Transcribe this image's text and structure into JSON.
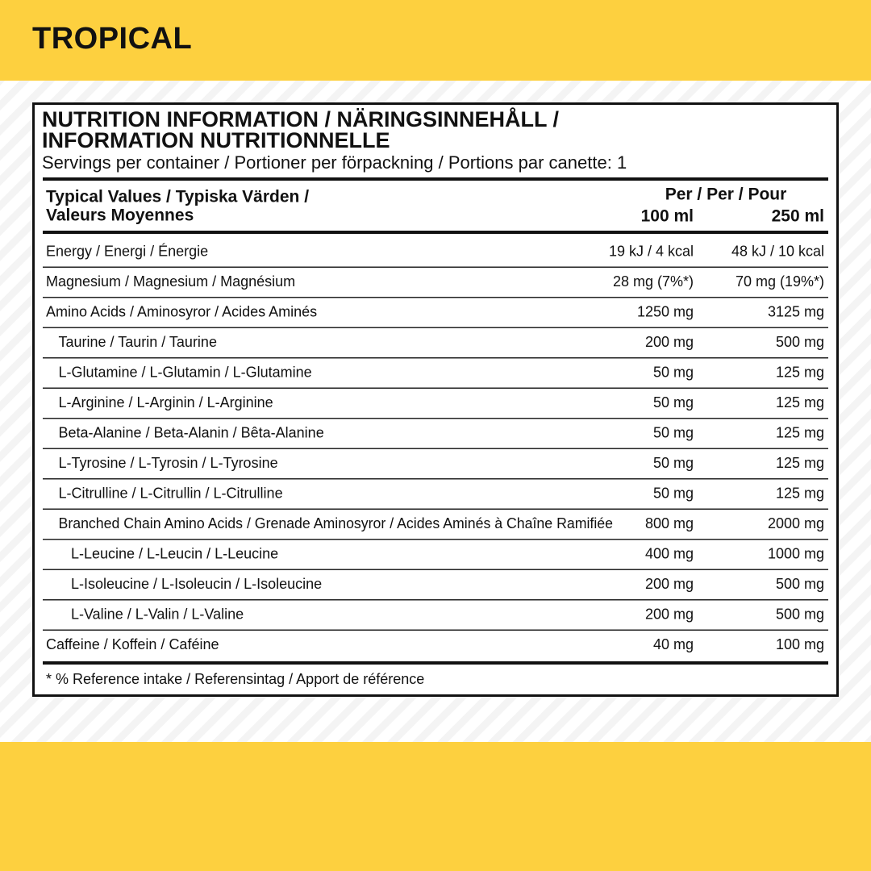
{
  "header": {
    "title": "TROPICAL"
  },
  "panel": {
    "title_lines": [
      "NUTRITION INFORMATION /  NÄRINGSINNEHÅLL /",
      "INFORMATION NUTRITIONNELLE"
    ],
    "servings": "Servings per container / Portioner per förpackning / Portions par canette: 1"
  },
  "table": {
    "head": {
      "label_lines": [
        "Typical Values / Typiska Värden /",
        "Valeurs Moyennes"
      ],
      "per": "Per / Per / Pour",
      "columns": [
        "100 ml",
        "250 ml"
      ]
    },
    "rows": [
      {
        "name": "Energy / Energi / Énergie",
        "level": 0,
        "values": [
          "19 kJ / 4 kcal",
          "48 kJ / 10 kcal"
        ]
      },
      {
        "name": "Magnesium / Magnesium / Magnésium",
        "level": 0,
        "values": [
          "28 mg (7%*)",
          "70 mg (19%*)"
        ]
      },
      {
        "name": "Amino Acids / Aminosyror / Acides Aminés",
        "level": 0,
        "values": [
          "1250 mg",
          "3125 mg"
        ]
      },
      {
        "name": "Taurine / Taurin / Taurine",
        "level": 1,
        "values": [
          "200 mg",
          "500 mg"
        ]
      },
      {
        "name": "L-Glutamine / L-Glutamin / L-Glutamine",
        "level": 1,
        "values": [
          "50 mg",
          "125 mg"
        ]
      },
      {
        "name": "L-Arginine / L-Arginin / L-Arginine",
        "level": 1,
        "values": [
          "50 mg",
          "125 mg"
        ]
      },
      {
        "name": "Beta-Alanine / Beta-Alanin / Bêta-Alanine",
        "level": 1,
        "values": [
          "50 mg",
          "125 mg"
        ]
      },
      {
        "name": "L-Tyrosine / L-Tyrosin / L-Tyrosine",
        "level": 1,
        "values": [
          "50 mg",
          "125 mg"
        ]
      },
      {
        "name": "L-Citrulline / L-Citrullin / L-Citrulline",
        "level": 1,
        "values": [
          "50 mg",
          "125 mg"
        ]
      },
      {
        "name": "Branched Chain Amino Acids / Grenade Aminosyror / Acides Aminés à Chaîne Ramifiée",
        "level": 1,
        "values": [
          "800 mg",
          "2000 mg"
        ]
      },
      {
        "name": "L-Leucine / L-Leucin / L-Leucine",
        "level": 2,
        "values": [
          "400 mg",
          "1000 mg"
        ]
      },
      {
        "name": "L-Isoleucine / L-Isoleucin / L-Isoleucine",
        "level": 2,
        "values": [
          "200 mg",
          "500 mg"
        ]
      },
      {
        "name": "L-Valine / L-Valin / L-Valine",
        "level": 2,
        "values": [
          "200 mg",
          "500 mg"
        ]
      },
      {
        "name": "Caffeine / Koffein / Caféine",
        "level": 0,
        "values": [
          "40 mg",
          "100 mg"
        ]
      }
    ],
    "footnote": "* % Reference intake / Referensintag / Apport de référence"
  }
}
